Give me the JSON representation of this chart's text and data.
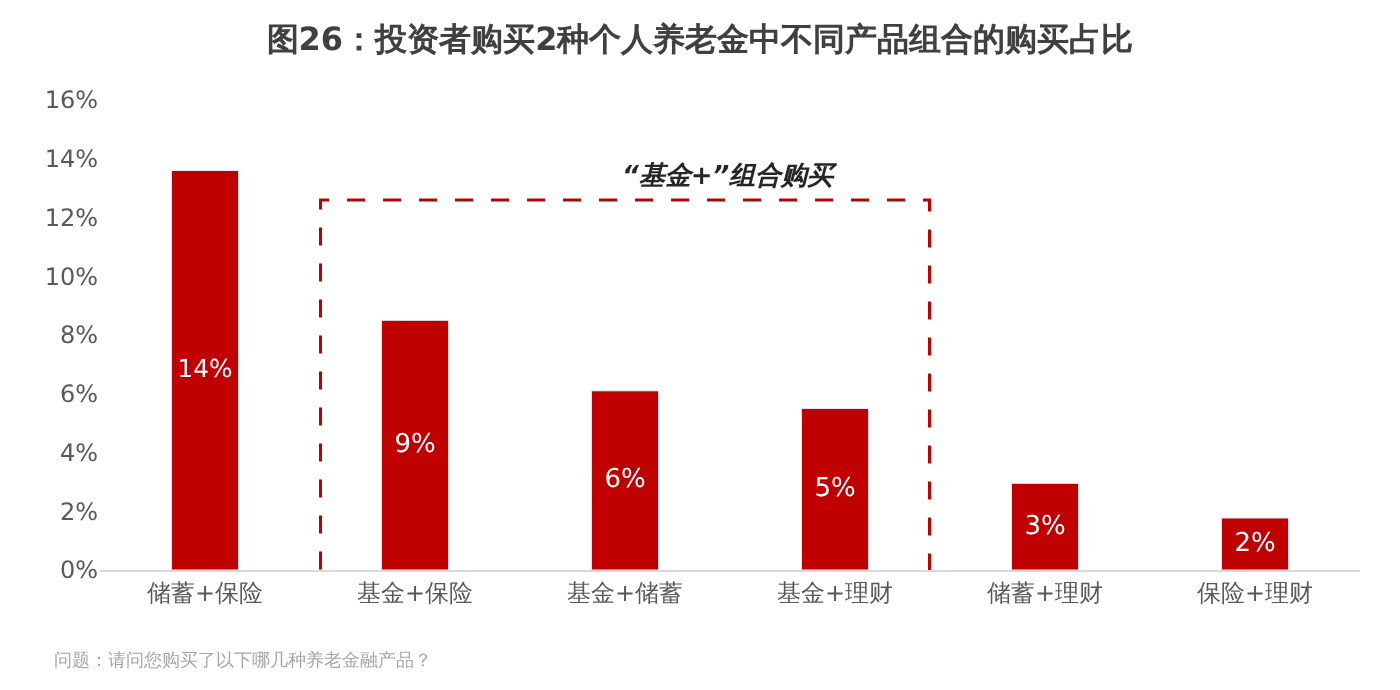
{
  "chart_data": {
    "type": "bar",
    "title": "图26：投资者购买2种个人养老金中不同产品组合的购买占比",
    "categories": [
      "储蓄+保险",
      "基金+保险",
      "基金+储蓄",
      "基金+理财",
      "储蓄+理财",
      "保险+理财"
    ],
    "values": [
      13.6,
      8.5,
      6.1,
      5.5,
      2.95,
      1.77
    ],
    "value_labels": [
      "14%",
      "9%",
      "6%",
      "5%",
      "3%",
      "2%"
    ],
    "color": "#c00000",
    "ylim": [
      0,
      16
    ],
    "yticks": [
      {
        "value": 0,
        "label": "0%"
      },
      {
        "value": 2,
        "label": "2%"
      },
      {
        "value": 4,
        "label": "4%"
      },
      {
        "value": 6,
        "label": "6%"
      },
      {
        "value": 8,
        "label": "8%"
      },
      {
        "value": 10,
        "label": "10%"
      },
      {
        "value": 12,
        "label": "12%"
      },
      {
        "value": 14,
        "label": "14%"
      },
      {
        "value": 16,
        "label": "16%"
      }
    ],
    "legend": false,
    "annotations": [
      "“基金+”组合购买",
      "问题：请问您购买了以下哪几种养老金融产品？"
    ]
  }
}
